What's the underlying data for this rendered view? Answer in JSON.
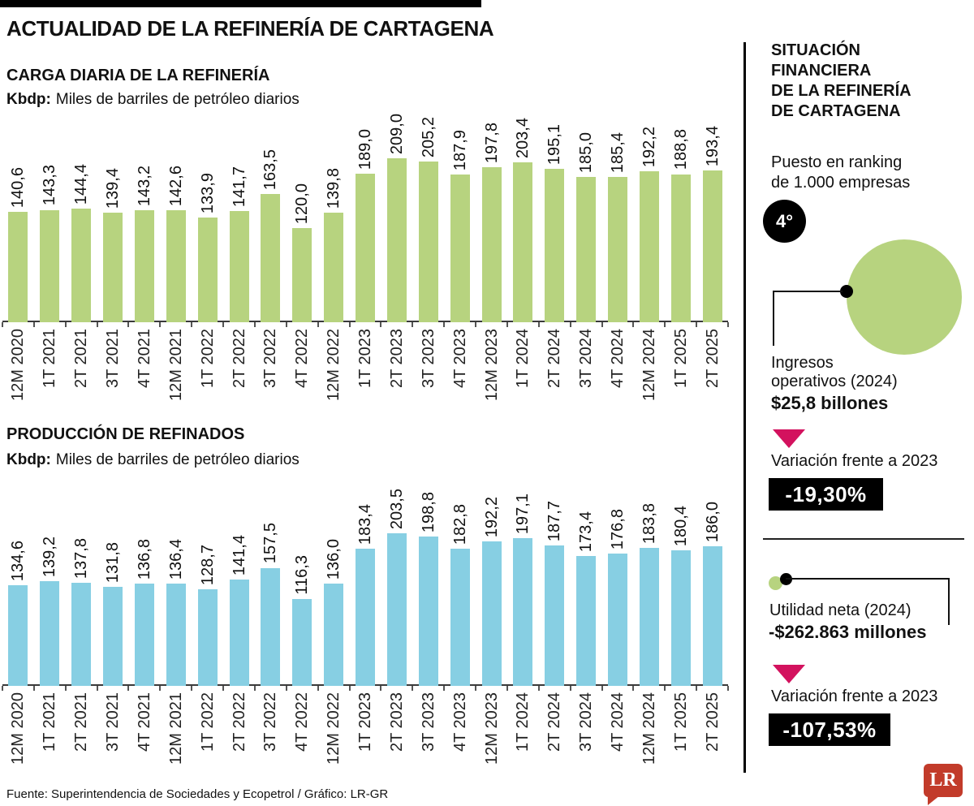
{
  "header": {
    "title": "ACTUALIDAD DE LA REFINERÍA DE CARTAGENA"
  },
  "chart_data": [
    {
      "type": "bar",
      "title": "CARGA DIARIA DE LA REFINERÍA",
      "unit_bold": "Kbdp:",
      "unit_rest": "Miles de barriles de petróleo diarios",
      "bar_color": "#b7d37f",
      "categories": [
        "12M 2020",
        "1T 2021",
        "2T 2021",
        "3T 2021",
        "4T 2021",
        "12M 2021",
        "1T 2022",
        "2T 2022",
        "3T 2022",
        "4T 2022",
        "12M 2022",
        "1T 2023",
        "2T 2023",
        "3T 2023",
        "4T 2023",
        "12M 2023",
        "1T 2024",
        "2T 2024",
        "3T 2024",
        "4T 2024",
        "12M 2024",
        "1T 2025",
        "2T 2025"
      ],
      "values": [
        140.6,
        143.3,
        144.4,
        139.4,
        143.2,
        142.6,
        133.9,
        141.7,
        163.5,
        120.0,
        139.8,
        189.0,
        209.0,
        205.2,
        187.9,
        197.8,
        203.4,
        195.1,
        185.0,
        185.4,
        192.2,
        188.8,
        193.4
      ],
      "ylim": [
        0,
        210
      ],
      "decimal_separator": ","
    },
    {
      "type": "bar",
      "title": "PRODUCCIÓN DE REFINADOS",
      "unit_bold": "Kbdp:",
      "unit_rest": "Miles de barriles de petróleo diarios",
      "bar_color": "#87cfe3",
      "categories": [
        "12M 2020",
        "1T 2021",
        "2T 2021",
        "3T 2021",
        "4T 2021",
        "12M 2021",
        "1T 2022",
        "2T 2022",
        "3T 2022",
        "4T 2022",
        "12M 2022",
        "1T 2023",
        "2T 2023",
        "3T 2023",
        "4T 2023",
        "12M 2023",
        "1T 2024",
        "2T 2024",
        "3T 2024",
        "4T 2024",
        "12M 2024",
        "1T 2025",
        "2T 2025"
      ],
      "values": [
        134.6,
        139.2,
        137.8,
        131.8,
        136.8,
        136.4,
        128.7,
        141.4,
        157.5,
        116.3,
        136.0,
        183.4,
        203.5,
        198.8,
        182.8,
        192.2,
        197.1,
        187.7,
        173.4,
        176.8,
        183.8,
        180.4,
        186.0
      ],
      "ylim": [
        0,
        210
      ],
      "decimal_separator": ","
    }
  ],
  "sidebar": {
    "title": "SITUACIÓN\nFINANCIERA\nDE LA REFINERÍA\nDE CARTAGENA",
    "ranking_label": "Puesto en ranking\nde 1.000 empresas",
    "rank_badge": "4°",
    "ingresos": {
      "label": "Ingresos\noperativos (2024)",
      "value": "$25,8 billones",
      "variation_label": "Variación frente a 2023",
      "variation_value": "-19,30%"
    },
    "utilidad": {
      "label": "Utilidad neta (2024)",
      "value": "-$262.863 millones",
      "variation_label": "Variación frente a 2023",
      "variation_value": "-107,53%"
    }
  },
  "footer": {
    "source": "Fuente: Superintendencia de Sociedades y Ecopetrol / Gráfico: LR-GR",
    "logo_text": "LR"
  },
  "colors": {
    "green": "#b7d37f",
    "blue": "#87cfe3",
    "pink": "#d3125e",
    "black": "#000000",
    "logo_red": "#c23b2a"
  }
}
